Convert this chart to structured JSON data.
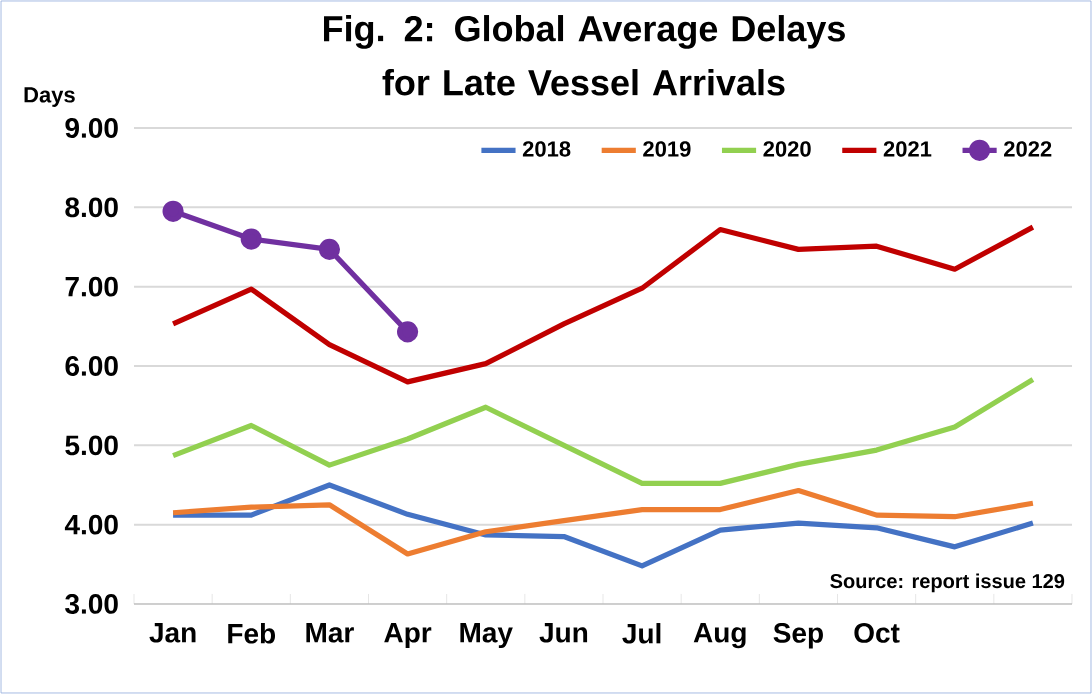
{
  "chart_data": {
    "type": "line",
    "title": "Fig. 2: Global Average Delays for Late Vessel Arrivals",
    "ylabel": "Days",
    "categories": [
      "Jan",
      "Feb",
      "Mar",
      "Apr",
      "May",
      "Jun",
      "Jul",
      "Aug",
      "Sep",
      "Oct",
      null,
      null
    ],
    "series": [
      {
        "name": "2018",
        "color": "#4472c4",
        "values": [
          4.12,
          4.12,
          4.5,
          4.13,
          3.87,
          3.85,
          3.48,
          3.93,
          4.02,
          3.96,
          3.72,
          4.02
        ]
      },
      {
        "name": "2019",
        "color": "#ed7d31",
        "values": [
          4.15,
          4.22,
          4.25,
          3.63,
          3.91,
          4.05,
          4.19,
          4.19,
          4.43,
          4.12,
          4.1,
          4.27
        ]
      },
      {
        "name": "2020",
        "color": "#92d050",
        "values": [
          4.87,
          5.25,
          4.75,
          5.08,
          5.48,
          5.0,
          4.52,
          4.52,
          4.76,
          4.94,
          5.23,
          5.83
        ]
      },
      {
        "name": "2021",
        "color": "#c00000",
        "values": [
          6.53,
          6.97,
          6.27,
          5.8,
          6.03,
          6.53,
          6.98,
          7.72,
          7.47,
          7.51,
          7.22,
          7.75
        ]
      },
      {
        "name": "2022",
        "color": "#7030a0",
        "marker": "circle",
        "values": [
          7.95,
          7.6,
          7.47,
          6.43,
          null,
          null,
          null,
          null,
          null,
          null,
          null,
          null
        ]
      }
    ],
    "ylim": [
      3,
      9
    ],
    "yticks": [
      {
        "value": 3,
        "label": "3.00"
      },
      {
        "value": 4,
        "label": "4.00"
      },
      {
        "value": 5,
        "label": "5.00"
      },
      {
        "value": 6,
        "label": "6.00"
      },
      {
        "value": 7,
        "label": "7.00"
      },
      {
        "value": 8,
        "label": "8.00"
      },
      {
        "value": 9,
        "label": "9.00"
      }
    ],
    "grid": "y",
    "legend": "top right",
    "marker": "none",
    "line_style": "solid",
    "annotations": [
      "Source: report issue 129"
    ]
  }
}
